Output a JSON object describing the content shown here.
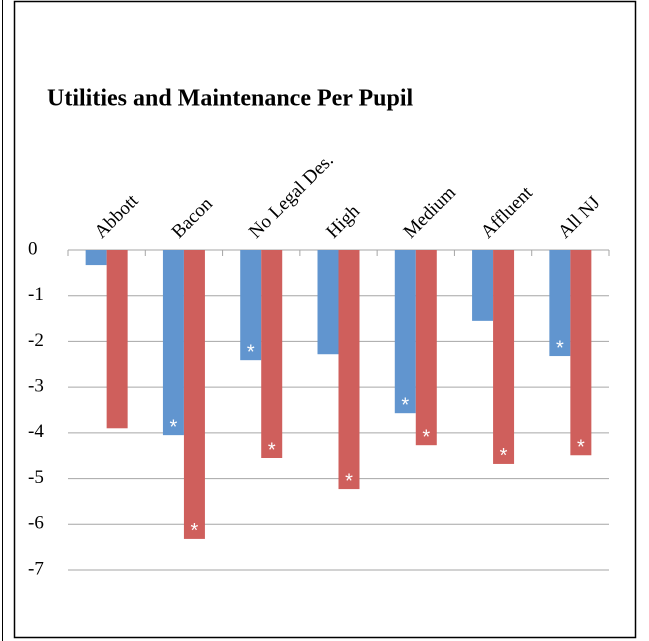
{
  "chart_data": {
    "type": "bar",
    "title": "Utilities and Maintenance Per Pupil",
    "categories": [
      "Abbott",
      "Bacon",
      "No Legal Des.",
      "High",
      "Medium",
      "Affluent",
      "All NJ"
    ],
    "series": [
      {
        "color": "#6195cf",
        "values": [
          -0.33,
          -4.05,
          -2.41,
          -2.28,
          -3.57,
          -1.55,
          -2.32
        ],
        "markers": [
          null,
          "*",
          "*",
          null,
          "*",
          null,
          "*"
        ]
      },
      {
        "color": "#cf5f5c",
        "values": [
          -3.9,
          -6.32,
          -4.55,
          -5.23,
          -4.27,
          -4.68,
          -4.49
        ],
        "markers": [
          null,
          "*",
          "*",
          "*",
          "*",
          "*",
          "*"
        ]
      }
    ],
    "ylim": [
      -7,
      0
    ],
    "yticks": [
      0,
      -1,
      -2,
      -3,
      -4,
      -5,
      -6,
      -7
    ],
    "grid": true
  }
}
